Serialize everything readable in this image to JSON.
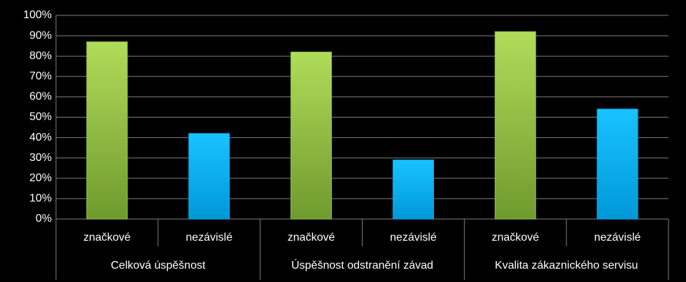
{
  "chart_data": {
    "type": "bar",
    "groups": [
      {
        "name": "Celková úspěšnost",
        "categories": [
          "značkové",
          "nezávislé"
        ],
        "values": [
          87,
          42
        ]
      },
      {
        "name": "Úspěšnost odstranění závad",
        "categories": [
          "značkové",
          "nezávislé"
        ],
        "values": [
          82,
          29
        ]
      },
      {
        "name": "Kvalita zákaznického servisu",
        "categories": [
          "značkové",
          "nezávislé"
        ],
        "values": [
          92,
          54
        ]
      }
    ],
    "colors": [
      "#92c83e",
      "#00b0f0"
    ],
    "ylim": [
      0,
      100
    ],
    "yticks": [
      {
        "value": 0,
        "label": "0%"
      },
      {
        "value": 10,
        "label": "10%"
      },
      {
        "value": 20,
        "label": "20%"
      },
      {
        "value": 30,
        "label": "30%"
      },
      {
        "value": 40,
        "label": "40%"
      },
      {
        "value": 50,
        "label": "50%"
      },
      {
        "value": 60,
        "label": "60%"
      },
      {
        "value": 70,
        "label": "70%"
      },
      {
        "value": 80,
        "label": "80%"
      },
      {
        "value": 90,
        "label": "90%"
      },
      {
        "value": 100,
        "label": "100%"
      }
    ],
    "grid": true
  }
}
